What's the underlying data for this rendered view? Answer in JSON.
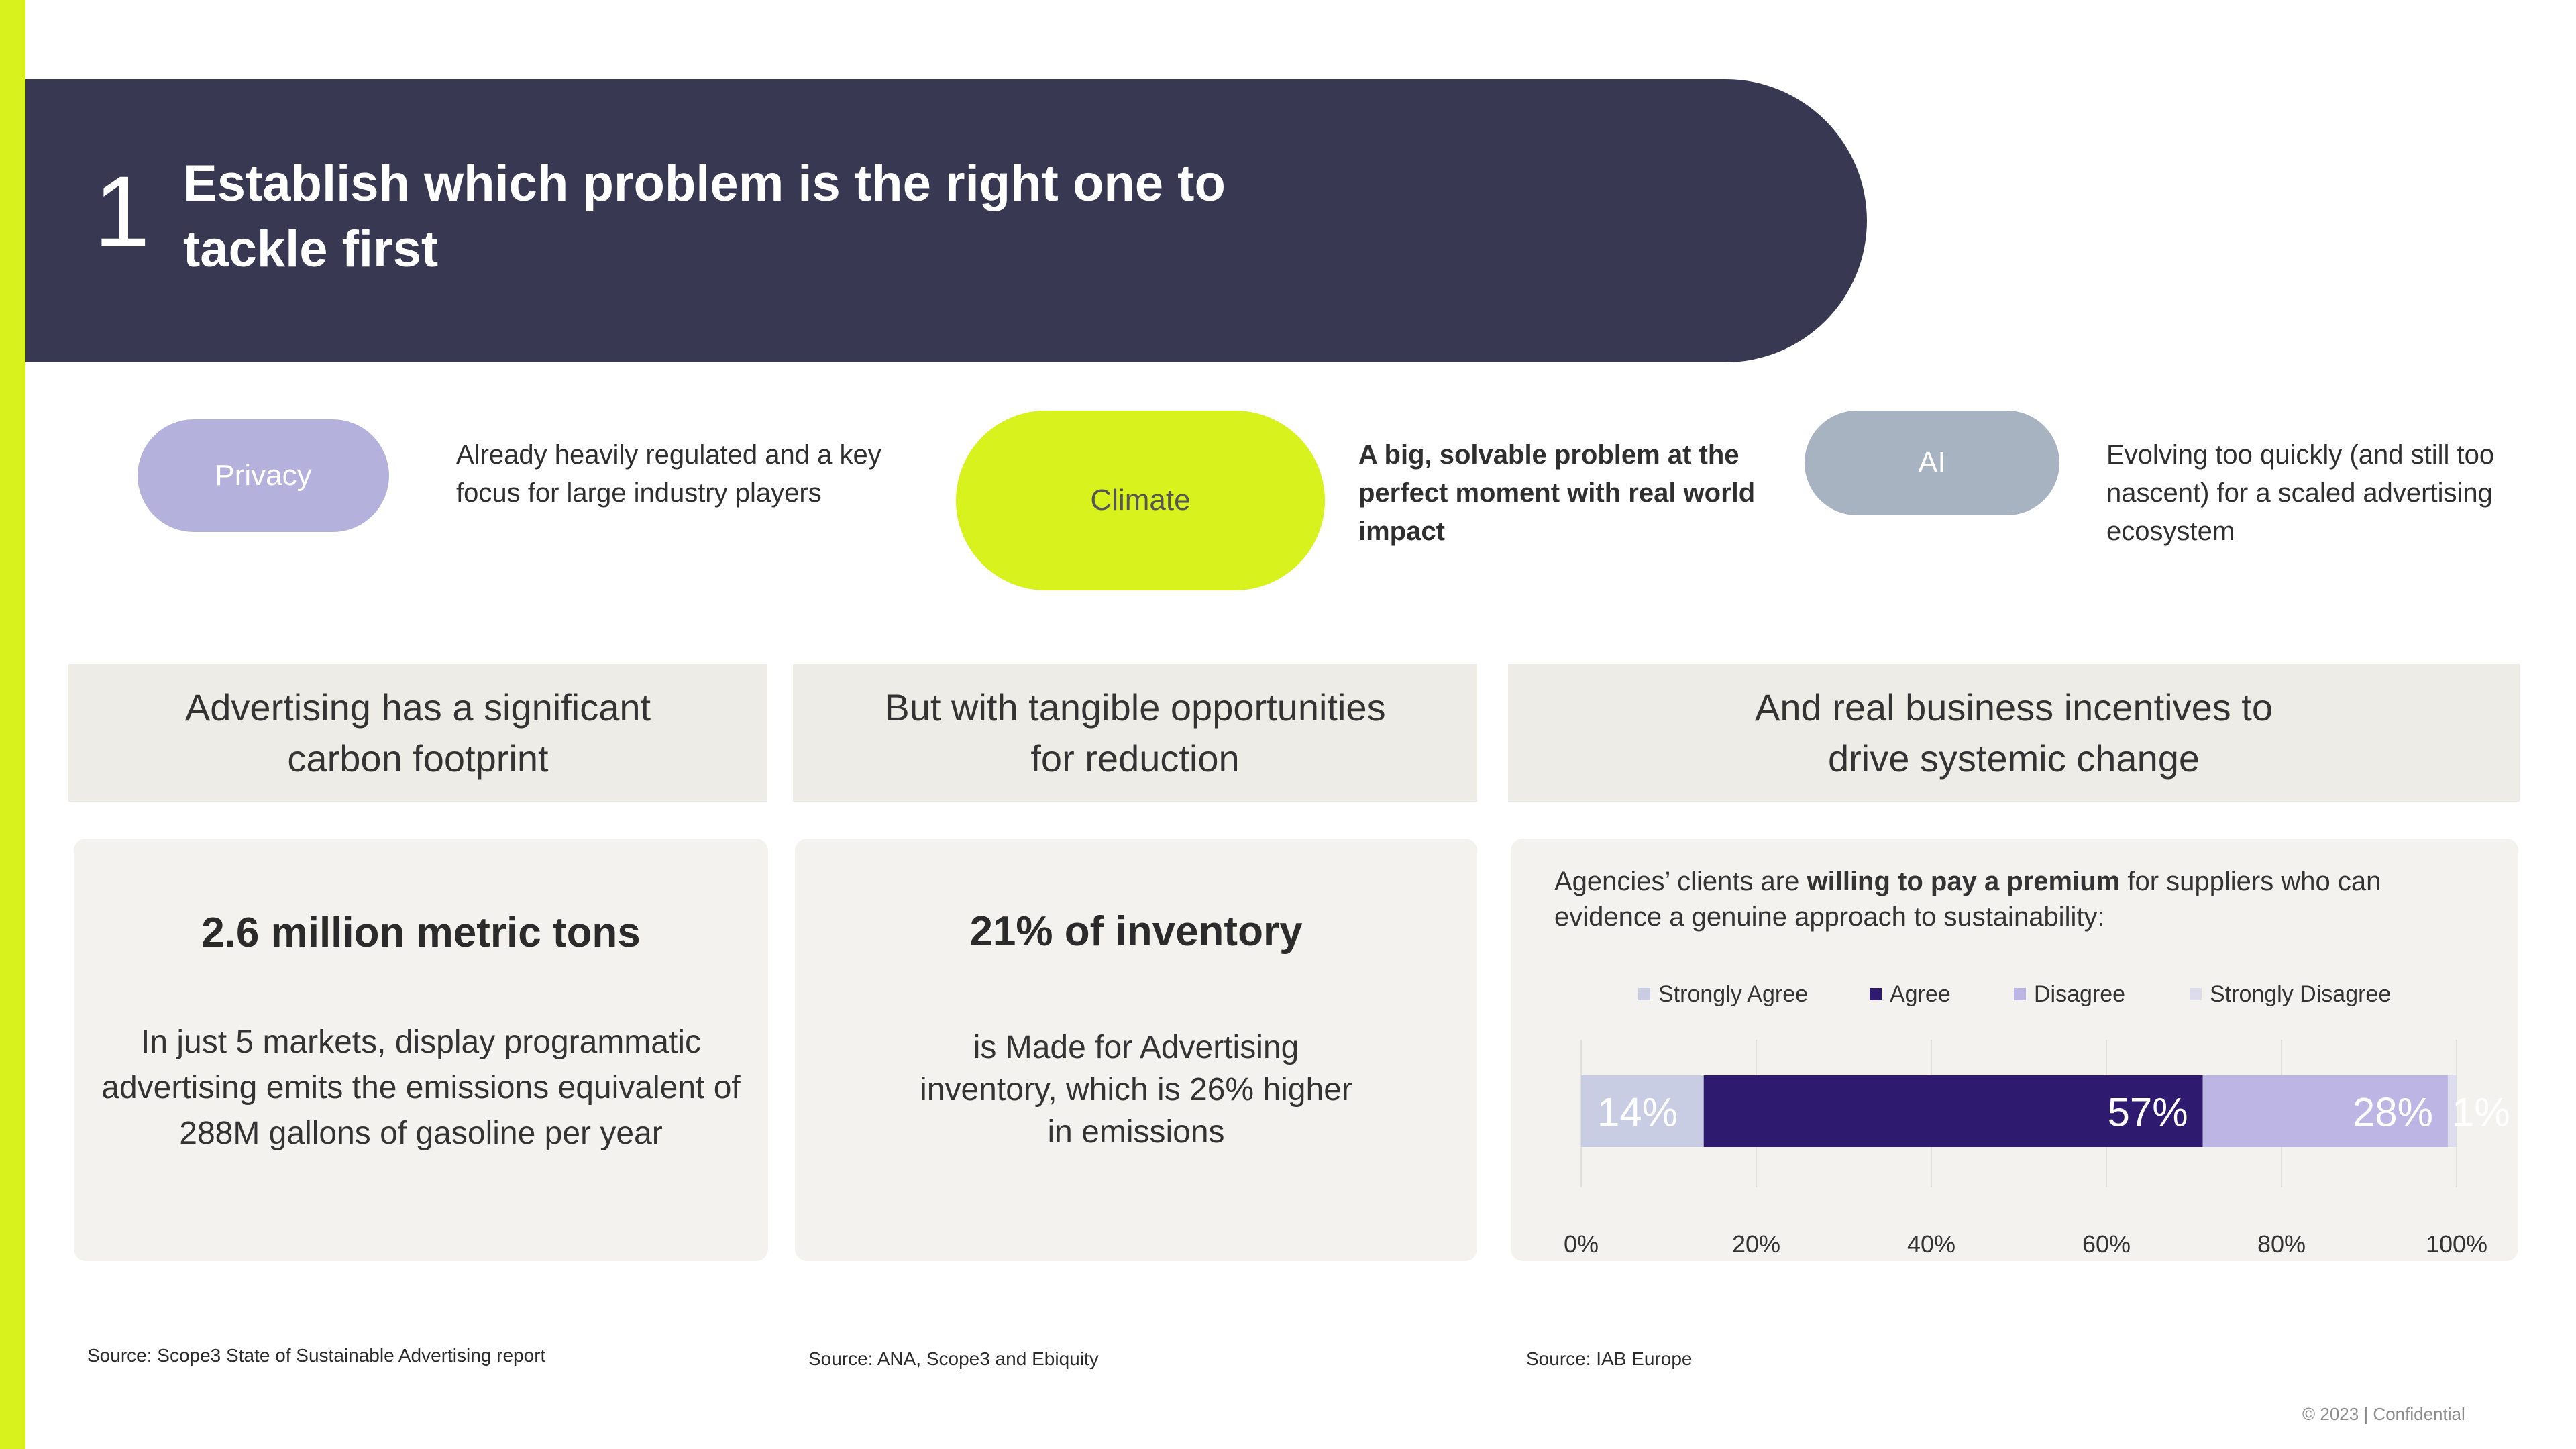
{
  "header": {
    "number": "1",
    "title": "Establish which problem is the right one to tackle first"
  },
  "options": [
    {
      "label": "Privacy",
      "description": "Already heavily regulated and a key focus for large industry players"
    },
    {
      "label": "Climate",
      "description": "A big, solvable problem at the perfect moment with real world impact"
    },
    {
      "label": "AI",
      "description": "Evolving too quickly (and still too nascent) for a scaled advertising ecosystem"
    }
  ],
  "columns": [
    {
      "heading": "Advertising has a significant carbon footprint",
      "stat": "2.6 million metric tons",
      "text": "In just 5 markets, display programmatic advertising emits the emissions equivalent of 288M gallons of gasoline per year",
      "source": "Source: Scope3 State of Sustainable Advertising report"
    },
    {
      "heading": "But with tangible opportunities for reduction",
      "stat": "21% of inventory",
      "text": "is Made for Advertising inventory, which is 26% higher in emissions",
      "source": "Source: ANA, Scope3 and Ebiquity"
    },
    {
      "heading": "And real business incentives to drive systemic change",
      "intro_prefix": "Agencies’ clients are ",
      "intro_bold": "willing to pay a premium",
      "intro_suffix": " for suppliers who can evidence a genuine approach to sustainability:",
      "source": "Source: IAB Europe"
    }
  ],
  "chart_data": {
    "type": "bar",
    "orientation": "horizontal-stacked",
    "categories": [
      ""
    ],
    "series": [
      {
        "name": "Strongly Agree",
        "values": [
          14
        ],
        "label": "14%",
        "color": "#c9cde4"
      },
      {
        "name": "Agree",
        "values": [
          57
        ],
        "label": "57%",
        "color": "#2e1a6e"
      },
      {
        "name": "Disagree",
        "values": [
          28
        ],
        "label": "28%",
        "color": "#bdb6e4"
      },
      {
        "name": "Strongly Disagree",
        "values": [
          1
        ],
        "label": "1%",
        "color": "#dcdcec"
      }
    ],
    "xlim": [
      0,
      100
    ],
    "xticks": [
      "0%",
      "20%",
      "40%",
      "60%",
      "80%",
      "100%"
    ],
    "legend_position": "top",
    "grid": true
  },
  "footer": {
    "note": "© 2023 | Confidential"
  },
  "colors": {
    "accent": "#d7f21c",
    "banner": "#393852",
    "panel": "#eeece7"
  }
}
